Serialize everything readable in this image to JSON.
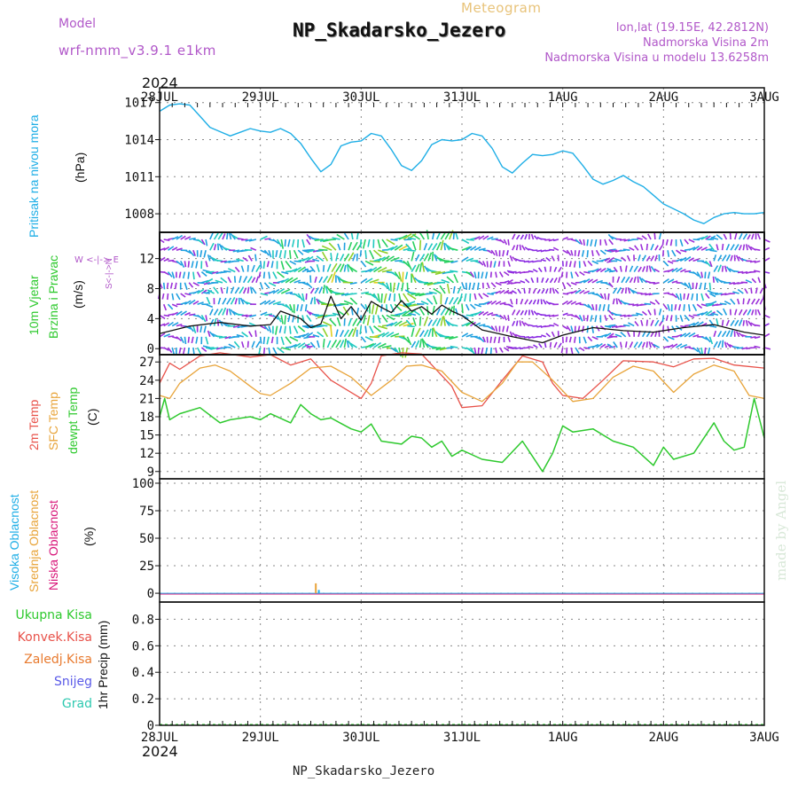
{
  "header": {
    "model_label": "Model",
    "model_name": "wrf-nmm_v3.9.1  e1km",
    "subtitle": "Meteogram",
    "title": "NP_Skadarsko_Jezero",
    "coords": "lon,lat (19.15E, 42.2812N)",
    "elev": "Nadmorska Visina 2m",
    "elev_model": "Nadmorska Visina u modelu 13.6258m",
    "year": "2024",
    "bottom_title": "NP_Skadarsko_Jezero",
    "made_by": "made by Angel"
  },
  "time_axis": {
    "labels": [
      "28JUL",
      "29JUL",
      "30JUL",
      "31JUL",
      "1AUG",
      "2AUG",
      "3AUG"
    ]
  },
  "colors": {
    "pressure": "#1eaee6",
    "temp2m": "#e8524a",
    "sfc_temp": "#e8a43a",
    "dewpoint": "#2ec92e",
    "high_cloud": "#1eaee6",
    "mid_cloud": "#e8a43a",
    "low_cloud": "#d8177a",
    "accent_purple": "#b158c9"
  },
  "panel_labels": {
    "pressure": [
      "Pritisak na nivou mora",
      "(hPa)"
    ],
    "wind": [
      "10m Vjetar",
      "Brzina i Pravac",
      "(m/s)"
    ],
    "wind_compass": "W <-|-> E",
    "wind_compass2": "S<-|->N",
    "temp": [
      "2m Temp",
      "SFC Temp",
      "dewpt Temp",
      "(C)"
    ],
    "cloud": [
      "Visoka Oblacnost",
      "Srednja Oblacnost",
      "Niska Oblacnost",
      "(%)"
    ],
    "precip_legend": [
      "Ukupna Kisa",
      "Konvek.Kisa",
      "Zaledj.Kisa",
      "Snijeg",
      "Grad"
    ],
    "precip_unit": "1hr Precip (mm)"
  },
  "chart_data": [
    {
      "type": "line",
      "name": "pressure",
      "ylabel": "(hPa)",
      "ylim": [
        1006.5,
        1018.2
      ],
      "yticks": [
        1008,
        1011,
        1014,
        1017
      ],
      "grid": true,
      "series": [
        {
          "name": "Pritisak na nivou mora",
          "x": [
            0,
            0.1,
            0.2,
            0.3,
            0.4,
            0.5,
            0.7,
            0.8,
            0.9,
            1.0,
            1.1,
            1.2,
            1.3,
            1.4,
            1.5,
            1.6,
            1.7,
            1.8,
            1.9,
            2.0,
            2.1,
            2.2,
            2.3,
            2.4,
            2.5,
            2.6,
            2.7,
            2.8,
            2.9,
            3.0,
            3.1,
            3.2,
            3.3,
            3.4,
            3.5,
            3.6,
            3.7,
            3.8,
            3.9,
            4.0,
            4.1,
            4.2,
            4.3,
            4.4,
            4.5,
            4.6,
            4.7,
            4.8,
            4.9,
            5.0,
            5.1,
            5.2,
            5.3,
            5.4,
            5.5,
            5.6,
            5.7,
            5.8,
            5.9,
            6.0
          ],
          "values": [
            1016.3,
            1016.8,
            1016.9,
            1016.8,
            1015.9,
            1015.0,
            1014.3,
            1014.6,
            1014.9,
            1014.7,
            1014.6,
            1014.9,
            1014.5,
            1013.7,
            1012.5,
            1011.4,
            1012.0,
            1013.5,
            1013.8,
            1013.9,
            1014.5,
            1014.3,
            1013.2,
            1011.9,
            1011.5,
            1012.3,
            1013.6,
            1014.0,
            1013.9,
            1014.0,
            1014.5,
            1014.3,
            1013.3,
            1011.8,
            1011.3,
            1012.1,
            1012.8,
            1012.7,
            1012.8,
            1013.1,
            1012.9,
            1011.9,
            1010.8,
            1010.4,
            1010.7,
            1011.1,
            1010.6,
            1010.2,
            1009.5,
            1008.8,
            1008.4,
            1008.0,
            1007.5,
            1007.2,
            1007.7,
            1008.0,
            1008.1,
            1008.0,
            1008.0,
            1008.1
          ]
        }
      ]
    },
    {
      "type": "line",
      "name": "wind",
      "ylabel": "(m/s)",
      "ylim": [
        -0.8,
        15.5
      ],
      "yticks": [
        0,
        4,
        8,
        12
      ],
      "grid": true,
      "series": [
        {
          "name": "10m wind speed",
          "x": [
            0,
            0.3,
            0.6,
            0.9,
            1.1,
            1.2,
            1.4,
            1.5,
            1.6,
            1.7,
            1.8,
            1.9,
            2.0,
            2.1,
            2.2,
            2.3,
            2.4,
            2.5,
            2.6,
            2.7,
            2.8,
            2.9,
            3.0,
            3.2,
            3.5,
            3.8,
            4.0,
            4.3,
            4.6,
            4.9,
            5.2,
            5.5,
            5.8,
            6.0
          ],
          "values": [
            2.0,
            3.0,
            3.5,
            3.0,
            3.2,
            5.0,
            4.0,
            2.8,
            3.3,
            7.0,
            4.0,
            5.6,
            3.8,
            6.3,
            5.5,
            4.8,
            6.4,
            5.0,
            5.6,
            4.6,
            5.8,
            5.0,
            4.4,
            2.5,
            1.6,
            0.8,
            1.8,
            2.8,
            2.4,
            2.2,
            2.8,
            3.2,
            2.2,
            1.8
          ]
        }
      ]
    },
    {
      "type": "line",
      "name": "temperature",
      "ylabel": "(C)",
      "ylim": [
        7.8,
        28.2
      ],
      "yticks": [
        9,
        12,
        15,
        18,
        21,
        24,
        27
      ],
      "grid": true,
      "series": [
        {
          "name": "2m Temp",
          "x": [
            0,
            0.1,
            0.2,
            0.4,
            0.6,
            0.9,
            1.1,
            1.3,
            1.5,
            1.7,
            2.0,
            2.1,
            2.2,
            2.4,
            2.6,
            2.9,
            3.0,
            3.2,
            3.4,
            3.6,
            3.8,
            3.9,
            4.0,
            4.2,
            4.4,
            4.6,
            4.9,
            5.1,
            5.3,
            5.5,
            5.7,
            6.0
          ],
          "values": [
            23.5,
            26.8,
            25.8,
            28.0,
            28.5,
            27.8,
            28.2,
            26.5,
            27.5,
            24.0,
            21.0,
            23.5,
            28.0,
            28.5,
            28.3,
            23.0,
            19.5,
            19.8,
            24.0,
            28.0,
            27.0,
            23.5,
            21.5,
            21.0,
            24.0,
            27.2,
            27.0,
            26.2,
            27.5,
            27.6,
            26.5,
            26.0
          ]
        },
        {
          "name": "SFC Temp",
          "x": [
            0,
            0.1,
            0.2,
            0.4,
            0.55,
            0.7,
            0.9,
            1.0,
            1.1,
            1.3,
            1.5,
            1.7,
            1.9,
            2.1,
            2.3,
            2.45,
            2.6,
            2.8,
            3.0,
            3.2,
            3.4,
            3.55,
            3.7,
            3.9,
            4.1,
            4.3,
            4.5,
            4.7,
            4.9,
            5.1,
            5.3,
            5.5,
            5.7,
            5.85,
            6.0
          ],
          "values": [
            21.5,
            21.0,
            23.5,
            26.0,
            26.5,
            25.5,
            23.0,
            21.8,
            21.5,
            23.5,
            26.0,
            26.3,
            24.5,
            21.5,
            24.0,
            26.3,
            26.5,
            25.5,
            22.0,
            20.5,
            23.5,
            27.0,
            27.0,
            24.0,
            20.5,
            21.0,
            24.5,
            26.3,
            25.5,
            22.0,
            25.0,
            26.5,
            25.5,
            21.5,
            21.0
          ]
        },
        {
          "name": "dewpt Temp",
          "x": [
            0,
            0.05,
            0.1,
            0.2,
            0.4,
            0.6,
            0.7,
            0.9,
            1.0,
            1.1,
            1.3,
            1.4,
            1.5,
            1.6,
            1.7,
            1.9,
            2.0,
            2.1,
            2.2,
            2.4,
            2.5,
            2.6,
            2.7,
            2.8,
            2.9,
            3.0,
            3.2,
            3.4,
            3.6,
            3.8,
            3.9,
            4.0,
            4.1,
            4.3,
            4.5,
            4.7,
            4.9,
            5.0,
            5.1,
            5.3,
            5.5,
            5.6,
            5.7,
            5.8,
            5.9,
            6.0
          ],
          "values": [
            18.0,
            21.0,
            17.5,
            18.5,
            19.5,
            17.0,
            17.5,
            18.0,
            17.5,
            18.5,
            17.0,
            20.0,
            18.5,
            17.5,
            17.8,
            16.0,
            15.5,
            16.8,
            14.0,
            13.5,
            14.8,
            14.5,
            13.0,
            14.0,
            11.5,
            12.5,
            11.0,
            10.5,
            14.0,
            9.0,
            12.0,
            16.5,
            15.5,
            16.0,
            14.0,
            13.0,
            10.0,
            13.0,
            11.0,
            12.0,
            17.0,
            14.0,
            12.5,
            13.0,
            21.0,
            14.5
          ]
        }
      ]
    },
    {
      "type": "bar",
      "name": "cloud",
      "ylabel": "(%)",
      "ylim": [
        -8,
        104
      ],
      "yticks": [
        0,
        25,
        50,
        75,
        100
      ],
      "grid": true,
      "series": [
        {
          "name": "Visoka Oblacnost",
          "x": [
            1.58
          ],
          "values": [
            3
          ]
        },
        {
          "name": "Srednja Oblacnost",
          "x": [
            1.55
          ],
          "values": [
            9
          ]
        },
        {
          "name": "Niska Oblacnost",
          "x": [],
          "values": []
        }
      ]
    },
    {
      "type": "bar",
      "name": "precipitation",
      "ylabel": "1hr Precip (mm)",
      "ylim": [
        0,
        0.93
      ],
      "yticks": [
        0,
        0.2,
        0.4,
        0.6,
        0.8
      ],
      "grid": true,
      "series": [
        {
          "name": "Ukupna Kisa",
          "x": [],
          "values": []
        },
        {
          "name": "Konvek.Kisa",
          "x": [],
          "values": []
        },
        {
          "name": "Zaledj.Kisa",
          "x": [],
          "values": []
        },
        {
          "name": "Snijeg",
          "x": [],
          "values": []
        },
        {
          "name": "Grad",
          "x": [],
          "values": []
        }
      ]
    }
  ]
}
